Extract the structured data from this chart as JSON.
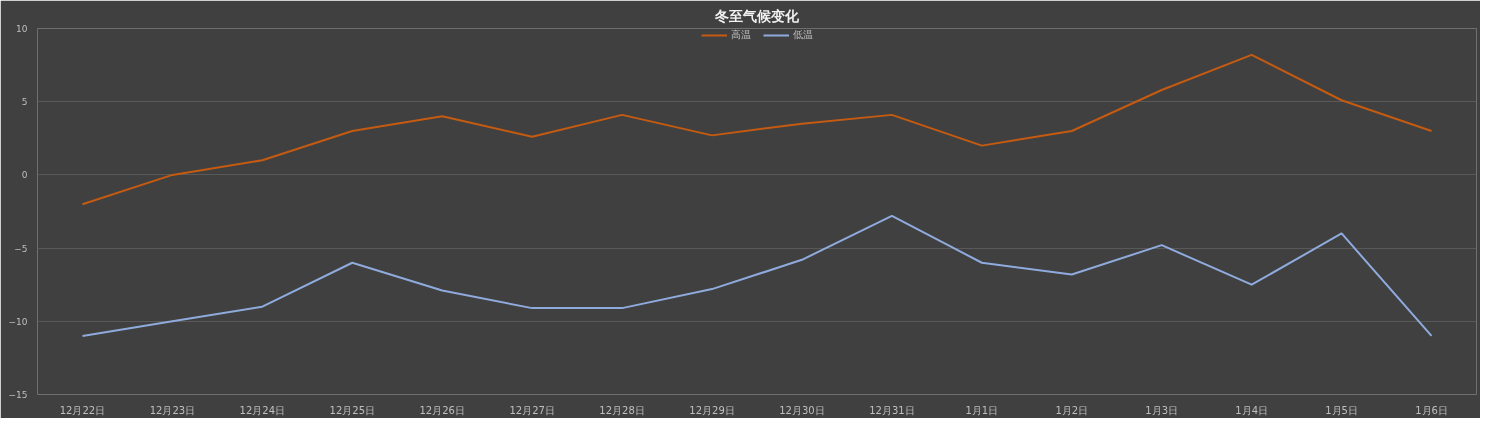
{
  "chart_data": {
    "type": "line",
    "title": "冬至气候变化",
    "categories": [
      "12月22日",
      "12月23日",
      "12月24日",
      "12月25日",
      "12月26日",
      "12月27日",
      "12月28日",
      "12月29日",
      "12月30日",
      "12月31日",
      "1月1日",
      "1月2日",
      "1月3日",
      "1月4日",
      "1月5日",
      "1月6日"
    ],
    "series": [
      {
        "name": "高温",
        "color": "#c55a11",
        "values": [
          -2,
          0,
          1,
          3,
          4,
          2.6,
          4.1,
          2.7,
          3.5,
          4.1,
          2,
          3,
          5.8,
          8.2,
          5.1,
          3
        ]
      },
      {
        "name": "低温",
        "color": "#8faadc",
        "values": [
          -11,
          -10,
          -9,
          -6,
          -7.9,
          -9.1,
          -9.1,
          -7.8,
          -5.8,
          -2.8,
          -6,
          -6.8,
          -4.8,
          -7.5,
          -4,
          -11
        ]
      }
    ],
    "ylim": [
      -15,
      10
    ],
    "yticks": [
      -15,
      -10,
      -5,
      0,
      5,
      10
    ],
    "grid": "y",
    "legend": "top",
    "line_style": "solid"
  }
}
